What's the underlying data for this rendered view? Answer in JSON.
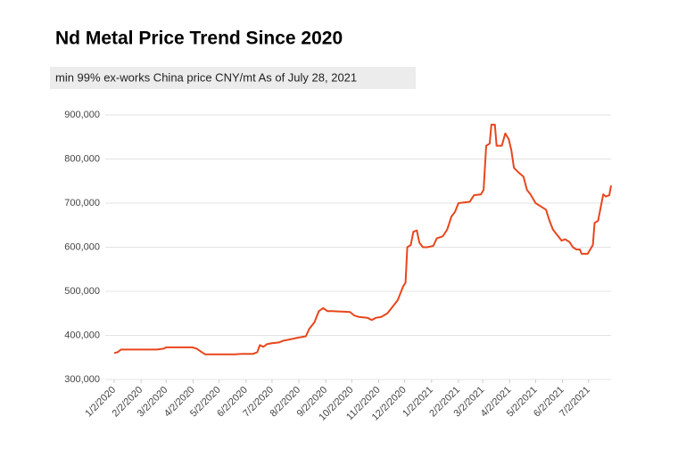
{
  "chart_data": {
    "type": "line",
    "title": "Nd Metal  Price Trend Since 2020",
    "subtitle": "min 99%   ex-works China price   CNY/mt   As of July 28, 2021",
    "x": [
      "1/2/2020",
      "1/6/2020",
      "1/10/2020",
      "2/20/2020",
      "2/28/2020",
      "3/2/2020",
      "4/1/2020",
      "4/6/2020",
      "4/12/2020",
      "4/16/2020",
      "5/10/2020",
      "5/20/2020",
      "5/28/2020",
      "6/10/2020",
      "6/15/2020",
      "6/18/2020",
      "6/22/2020",
      "6/26/2020",
      "7/1/2020",
      "7/10/2020",
      "7/15/2020",
      "7/25/2020",
      "8/1/2020",
      "8/10/2020",
      "8/14/2020",
      "8/20/2020",
      "8/25/2020",
      "8/30/2020",
      "9/4/2020",
      "9/10/2020",
      "9/30/2020",
      "10/5/2020",
      "10/10/2020",
      "10/20/2020",
      "10/25/2020",
      "10/30/2020",
      "11/5/2020",
      "11/12/2020",
      "11/18/2020",
      "11/24/2020",
      "11/30/2020",
      "12/3/2020",
      "12/5/2020",
      "12/9/2020",
      "12/12/2020",
      "12/16/2020",
      "12/19/2020",
      "12/23/2020",
      "12/28/2020",
      "1/4/2021",
      "1/8/2021",
      "1/15/2021",
      "1/20/2021",
      "1/25/2021",
      "1/29/2021",
      "2/2/2021",
      "2/15/2021",
      "2/20/2021",
      "2/28/2021",
      "3/3/2021",
      "3/6/2021",
      "3/10/2021",
      "3/12/2021",
      "3/16/2021",
      "3/18/2021",
      "3/24/2021",
      "3/28/2021",
      "4/1/2021",
      "4/4/2021",
      "4/7/2021",
      "4/12/2021",
      "4/18/2021",
      "4/22/2021",
      "4/26/2021",
      "5/2/2021",
      "5/10/2021",
      "5/14/2021",
      "5/18/2021",
      "5/22/2021",
      "5/28/2021",
      "6/1/2021",
      "6/5/2021",
      "6/10/2021",
      "6/14/2021",
      "6/18/2021",
      "6/22/2021",
      "6/24/2021",
      "7/1/2021",
      "7/4/2021",
      "7/7/2021",
      "7/9/2021",
      "7/13/2021",
      "7/16/2021",
      "7/19/2021",
      "7/22/2021",
      "7/26/2021",
      "7/28/2021"
    ],
    "series": [
      {
        "color": "#e8461c",
        "values": [
          360000,
          362000,
          368000,
          368000,
          370000,
          373000,
          373000,
          370000,
          362000,
          357000,
          357000,
          357000,
          358000,
          358000,
          362000,
          378000,
          374000,
          380000,
          382000,
          384000,
          388000,
          392000,
          395000,
          398000,
          415000,
          430000,
          455000,
          462000,
          455000,
          455000,
          453000,
          445000,
          442000,
          440000,
          435000,
          440000,
          442000,
          450000,
          465000,
          480000,
          510000,
          520000,
          600000,
          605000,
          635000,
          638000,
          610000,
          600000,
          600000,
          603000,
          620000,
          625000,
          640000,
          670000,
          680000,
          700000,
          703000,
          718000,
          720000,
          730000,
          830000,
          835000,
          878000,
          878000,
          830000,
          830000,
          858000,
          845000,
          820000,
          780000,
          770000,
          760000,
          730000,
          720000,
          700000,
          690000,
          685000,
          660000,
          640000,
          625000,
          615000,
          618000,
          612000,
          600000,
          595000,
          595000,
          585000,
          585000,
          595000,
          605000,
          655000,
          660000,
          690000,
          720000,
          715000,
          718000,
          740000
        ]
      }
    ],
    "xlim": [
      "1/2/2020",
      "7/28/2021"
    ],
    "xticks": [
      "1/2/2020",
      "2/2/2020",
      "3/2/2020",
      "4/2/2020",
      "5/2/2020",
      "6/2/2020",
      "7/2/2020",
      "8/2/2020",
      "9/2/2020",
      "10/2/2020",
      "11/2/2020",
      "12/2/2020",
      "1/2/2021",
      "2/2/2021",
      "3/2/2021",
      "4/2/2021",
      "5/2/2021",
      "6/2/2021",
      "7/2/2021"
    ],
    "ylim": [
      300000,
      900000
    ],
    "yticks": [
      {
        "value": 300000,
        "label": "300,000"
      },
      {
        "value": 400000,
        "label": "400,000"
      },
      {
        "value": 500000,
        "label": "500,000"
      },
      {
        "value": 600000,
        "label": "600,000"
      },
      {
        "value": 700000,
        "label": "700,000"
      },
      {
        "value": 800000,
        "label": "800,000"
      },
      {
        "value": 900000,
        "label": "900,000"
      }
    ],
    "grid": true
  }
}
